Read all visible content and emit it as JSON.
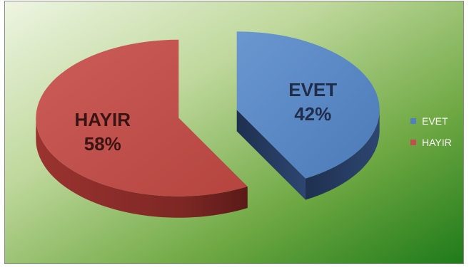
{
  "chart_data": {
    "type": "pie",
    "title": "",
    "categories": [
      "EVET",
      "HAYIR"
    ],
    "values": [
      42,
      58
    ],
    "labels": [
      "42%",
      "58%"
    ],
    "colors": [
      "#4f81bd",
      "#c0504d"
    ],
    "legend_position": "right"
  }
}
